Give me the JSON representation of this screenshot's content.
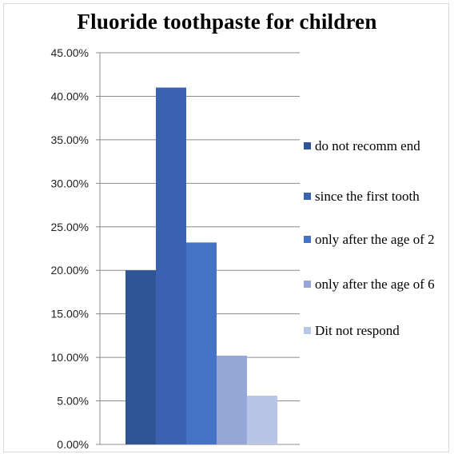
{
  "chart_data": {
    "type": "bar",
    "title": "Fluoride toothpaste for children",
    "xlabel": "",
    "ylabel": "",
    "ylim": [
      0,
      45
    ],
    "yticks": [
      "0.00%",
      "5.00%",
      "10.00%",
      "15.00%",
      "20.00%",
      "25.00%",
      "30.00%",
      "35.00%",
      "40.00%",
      "45.00%"
    ],
    "grid": true,
    "legend_position": "right",
    "series": [
      {
        "name": "do not recomm end",
        "value": 20.0,
        "color": "#2f5597"
      },
      {
        "name": "since the first tooth",
        "value": 41.0,
        "color": "#3a62b0"
      },
      {
        "name": "only after the age of 2",
        "value": 23.2,
        "color": "#4472c4"
      },
      {
        "name": "only after the age of 6",
        "value": 10.2,
        "color": "#95a7d6"
      },
      {
        "name": "Dit not respond",
        "value": 5.6,
        "color": "#b9c5e5"
      }
    ]
  }
}
